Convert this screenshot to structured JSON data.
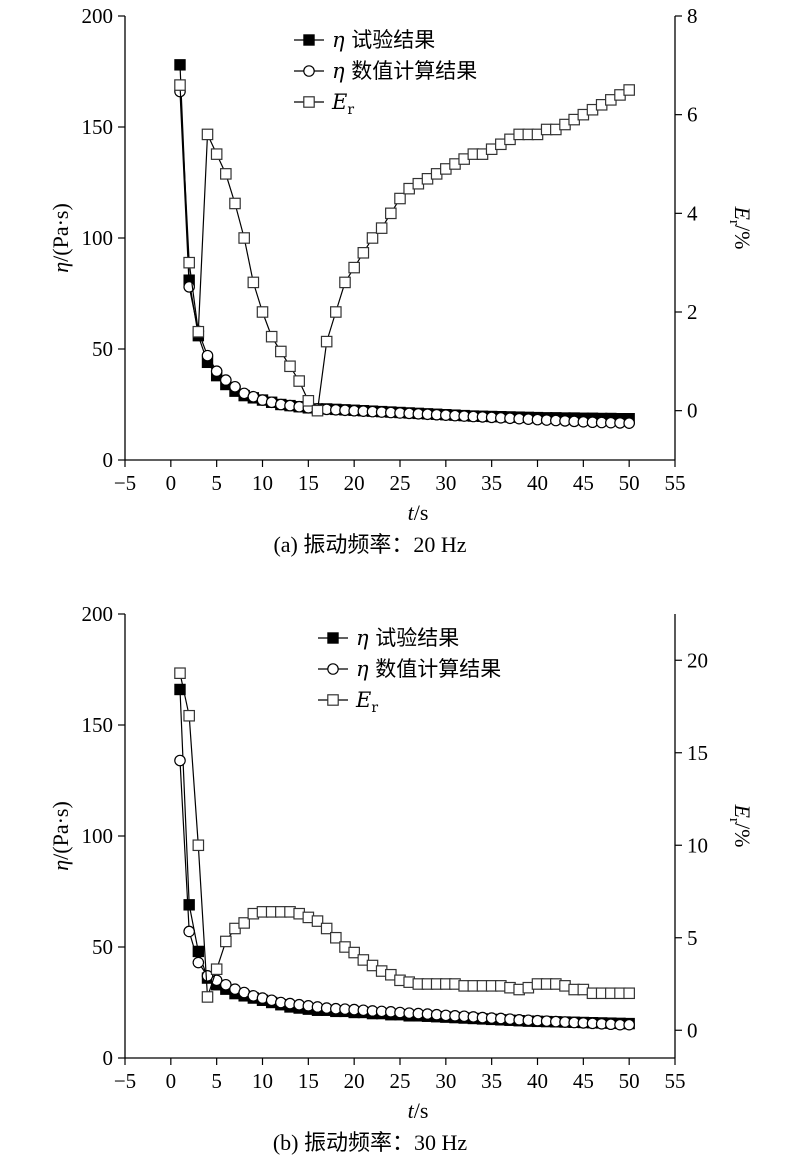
{
  "chart_data": [
    {
      "type": "line",
      "caption": "(a) 振动频率：20 Hz",
      "xlabel": "t/s",
      "ylabel_left": "η/(Pa·s)",
      "ylabel_right": "Er/%",
      "xlim": [
        -5,
        55
      ],
      "ylim_left": [
        0,
        200
      ],
      "ylim_right": [
        -1,
        8
      ],
      "xticks": [
        -5,
        0,
        5,
        10,
        15,
        20,
        25,
        30,
        35,
        40,
        45,
        50,
        55
      ],
      "yticks_left": [
        0,
        50,
        100,
        150,
        200
      ],
      "yticks_right": [
        0,
        2,
        4,
        6,
        8
      ],
      "legend_position": "top-center",
      "x": [
        1,
        2,
        3,
        4,
        5,
        6,
        7,
        8,
        9,
        10,
        11,
        12,
        13,
        14,
        15,
        16,
        17,
        18,
        19,
        20,
        21,
        22,
        23,
        24,
        25,
        26,
        27,
        28,
        29,
        30,
        31,
        32,
        33,
        34,
        35,
        36,
        37,
        38,
        39,
        40,
        41,
        42,
        43,
        44,
        45,
        46,
        47,
        48,
        49,
        50
      ],
      "series": [
        {
          "name": "η 试验结果",
          "name_symbol": "η",
          "name_text": "试验结果",
          "axis": "left",
          "marker": "filled-square",
          "values": [
            178,
            81,
            56,
            44,
            38,
            34,
            31,
            29,
            28,
            27,
            26,
            25,
            24.5,
            24,
            23.5,
            23,
            23,
            22.8,
            22.6,
            22.4,
            22.2,
            22,
            21.8,
            21.6,
            21.4,
            21.2,
            21,
            20.8,
            20.6,
            20.4,
            20.2,
            20,
            19.8,
            19.7,
            19.6,
            19.5,
            19.4,
            19.3,
            19.2,
            19.1,
            19,
            19,
            18.9,
            18.9,
            18.8,
            18.8,
            18.7,
            18.7,
            18.6,
            18.6
          ]
        },
        {
          "name": "η 数值计算结果",
          "name_symbol": "η",
          "name_text": "数值计算结果",
          "axis": "left",
          "marker": "open-circle",
          "values": [
            166,
            78,
            58,
            47,
            40,
            36,
            33,
            30,
            28.5,
            27,
            26,
            25,
            24.5,
            24,
            23.5,
            23,
            22.8,
            22.6,
            22.4,
            22.2,
            22,
            21.8,
            21.6,
            21.4,
            21.2,
            21,
            20.8,
            20.6,
            20.4,
            20.2,
            20,
            19.8,
            19.6,
            19.4,
            19.2,
            19,
            18.8,
            18.6,
            18.4,
            18.2,
            18,
            17.8,
            17.6,
            17.4,
            17.2,
            17,
            16.9,
            16.8,
            16.7,
            16.6
          ]
        },
        {
          "name": "Er",
          "name_symbol": "E",
          "name_sub": "r",
          "axis": "right",
          "marker": "open-square",
          "values": [
            6.6,
            3.0,
            1.6,
            5.6,
            5.2,
            4.8,
            4.2,
            3.5,
            2.6,
            2.0,
            1.5,
            1.2,
            0.9,
            0.6,
            0.2,
            0.0,
            1.4,
            2.0,
            2.6,
            2.9,
            3.2,
            3.5,
            3.7,
            4.0,
            4.3,
            4.5,
            4.6,
            4.7,
            4.8,
            4.9,
            5.0,
            5.1,
            5.2,
            5.2,
            5.3,
            5.4,
            5.5,
            5.6,
            5.6,
            5.6,
            5.7,
            5.7,
            5.8,
            5.9,
            6.0,
            6.1,
            6.2,
            6.3,
            6.4,
            6.5
          ]
        }
      ]
    },
    {
      "type": "line",
      "caption": "(b) 振动频率：30 Hz",
      "xlabel": "t/s",
      "ylabel_left": "η/(Pa·s)",
      "ylabel_right": "Er/%",
      "xlim": [
        -5,
        55
      ],
      "ylim_left": [
        0,
        200
      ],
      "ylim_right": [
        -1.5,
        22.5
      ],
      "xticks": [
        -5,
        0,
        5,
        10,
        15,
        20,
        25,
        30,
        35,
        40,
        45,
        50,
        55
      ],
      "yticks_left": [
        0,
        50,
        100,
        150,
        200
      ],
      "yticks_right": [
        0,
        5,
        10,
        15,
        20
      ],
      "legend_position": "top-center",
      "x": [
        1,
        2,
        3,
        4,
        5,
        6,
        7,
        8,
        9,
        10,
        11,
        12,
        13,
        14,
        15,
        16,
        17,
        18,
        19,
        20,
        21,
        22,
        23,
        24,
        25,
        26,
        27,
        28,
        29,
        30,
        31,
        32,
        33,
        34,
        35,
        36,
        37,
        38,
        39,
        40,
        41,
        42,
        43,
        44,
        45,
        46,
        47,
        48,
        49,
        50
      ],
      "series": [
        {
          "name": "η 试验结果",
          "name_symbol": "η",
          "name_text": "试验结果",
          "axis": "left",
          "marker": "filled-square",
          "values": [
            166,
            69,
            48,
            36,
            33,
            31,
            29,
            28,
            27,
            26,
            25,
            24,
            23,
            22.5,
            22,
            21.5,
            21.5,
            21,
            21,
            20.5,
            20.5,
            20,
            20,
            19.5,
            19.5,
            19,
            19,
            18.8,
            18.6,
            18.4,
            18.2,
            18,
            17.8,
            17.6,
            17.4,
            17.2,
            17,
            16.8,
            16.6,
            16.5,
            16.4,
            16.3,
            16.2,
            16.1,
            16,
            15.9,
            15.8,
            15.7,
            15.6,
            15.5
          ]
        },
        {
          "name": "η 数值计算结果",
          "name_symbol": "η",
          "name_text": "数值计算结果",
          "axis": "left",
          "marker": "open-circle",
          "values": [
            134,
            57,
            43,
            37,
            35,
            33,
            31,
            29.5,
            28,
            27,
            26,
            25,
            24.5,
            24,
            23.5,
            23,
            22.5,
            22.2,
            22,
            21.8,
            21.5,
            21.2,
            21,
            20.8,
            20.5,
            20.2,
            20,
            19.8,
            19.5,
            19.2,
            19,
            18.8,
            18.5,
            18.2,
            18,
            17.8,
            17.5,
            17.2,
            17,
            16.8,
            16.6,
            16.4,
            16.2,
            16,
            15.8,
            15.6,
            15.4,
            15.2,
            15,
            15
          ]
        },
        {
          "name": "Er",
          "name_symbol": "E",
          "name_sub": "r",
          "axis": "right",
          "marker": "open-square",
          "values": [
            19.3,
            17.0,
            10.0,
            1.8,
            3.3,
            4.8,
            5.5,
            5.8,
            6.3,
            6.4,
            6.4,
            6.4,
            6.4,
            6.3,
            6.1,
            5.9,
            5.5,
            5.0,
            4.5,
            4.2,
            3.8,
            3.5,
            3.2,
            3.0,
            2.7,
            2.6,
            2.5,
            2.5,
            2.5,
            2.5,
            2.5,
            2.4,
            2.4,
            2.4,
            2.4,
            2.4,
            2.3,
            2.2,
            2.3,
            2.5,
            2.5,
            2.5,
            2.4,
            2.2,
            2.2,
            2.0,
            2.0,
            2.0,
            2.0,
            2.0
          ]
        }
      ]
    }
  ]
}
